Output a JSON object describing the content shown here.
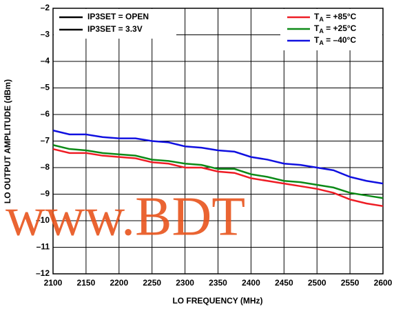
{
  "chart_data": {
    "type": "line",
    "xlabel": "LO FREQUENCY (MHz)",
    "ylabel": "LO OUTPUT AMPLITUDE (dBm)",
    "x": [
      2100,
      2125,
      2150,
      2175,
      2200,
      2225,
      2250,
      2275,
      2300,
      2325,
      2350,
      2375,
      2400,
      2425,
      2450,
      2475,
      2500,
      2525,
      2550,
      2575,
      2600
    ],
    "series": [
      {
        "name": "T",
        "name_sub": "A",
        "name_rest": " = +85°C",
        "color": "#ee1c24",
        "values": [
          -7.3,
          -7.45,
          -7.45,
          -7.55,
          -7.6,
          -7.65,
          -7.8,
          -7.85,
          -8.0,
          -8.0,
          -8.15,
          -8.2,
          -8.4,
          -8.5,
          -8.6,
          -8.7,
          -8.8,
          -8.95,
          -9.2,
          -9.35,
          -9.45
        ]
      },
      {
        "name": "T",
        "name_sub": "A",
        "name_rest": " = +25°C",
        "color": "#0c8a17",
        "values": [
          -7.15,
          -7.3,
          -7.35,
          -7.45,
          -7.5,
          -7.55,
          -7.7,
          -7.75,
          -7.85,
          -7.9,
          -8.05,
          -8.05,
          -8.25,
          -8.35,
          -8.5,
          -8.55,
          -8.65,
          -8.75,
          -8.95,
          -9.05,
          -9.15
        ]
      },
      {
        "name": "T",
        "name_sub": "A",
        "name_rest": " = –40°C",
        "color": "#1010e0",
        "values": [
          -6.6,
          -6.75,
          -6.75,
          -6.85,
          -6.9,
          -6.9,
          -7.0,
          -7.05,
          -7.2,
          -7.25,
          -7.35,
          -7.4,
          -7.6,
          -7.7,
          -7.85,
          -7.9,
          -8.0,
          -8.1,
          -8.35,
          -8.5,
          -8.6
        ]
      }
    ],
    "legend_left": [
      "IP3SET = OPEN",
      "IP3SET = 3.3V"
    ],
    "watermark": "www.BDT",
    "xlim": [
      2100,
      2600
    ],
    "xticks": [
      2100,
      2150,
      2200,
      2250,
      2300,
      2350,
      2400,
      2450,
      2500,
      2550,
      2600
    ],
    "ylim": [
      -12,
      -2
    ],
    "yticks": [
      {
        "value": -2,
        "label": "–2"
      },
      {
        "value": -3,
        "label": "–3"
      },
      {
        "value": -4,
        "label": "–4"
      },
      {
        "value": -5,
        "label": "–5"
      },
      {
        "value": -6,
        "label": "–6"
      },
      {
        "value": -7,
        "label": "–7"
      },
      {
        "value": -8,
        "label": "–8"
      },
      {
        "value": -9,
        "label": "–9"
      },
      {
        "value": -10,
        "label": "–10"
      },
      {
        "value": -11,
        "label": "–11"
      },
      {
        "value": -12,
        "label": "–12"
      }
    ],
    "grid": true
  }
}
